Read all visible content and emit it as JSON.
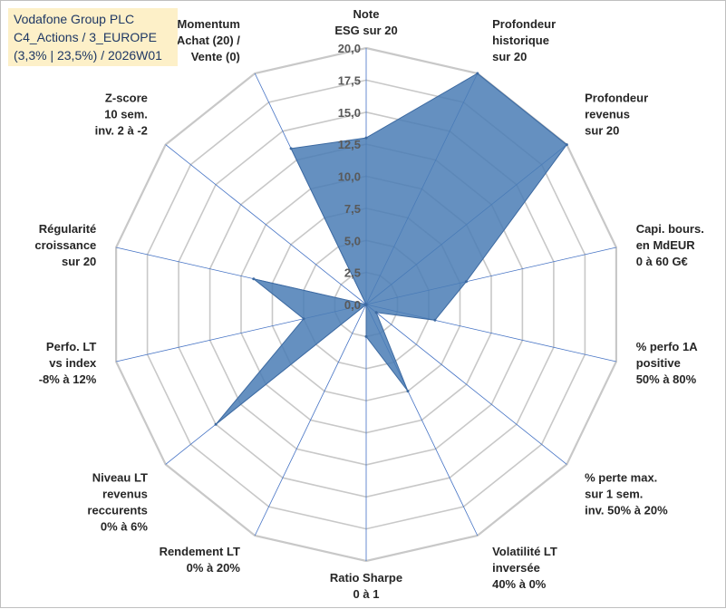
{
  "header": {
    "line1": "Vodafone Group PLC",
    "line2": "C4_Actions / 3_EUROPE",
    "line3": "(3,3% | 23,5%) / 2026W01"
  },
  "colors": {
    "fill": "#4a7cb5",
    "stroke": "#3d6aa1",
    "grid": "#c8c8c8",
    "spoke": "#4472c4",
    "title_bg": "#fdf0c8"
  },
  "chart_data": {
    "type": "radar",
    "rmin": 0,
    "rmax": 20,
    "ticks": [
      "0,0",
      "2,5",
      "5,0",
      "7,5",
      "10,0",
      "12,5",
      "15,0",
      "17,5",
      "20,0"
    ],
    "axes": [
      {
        "lines": [
          "Note",
          "ESG sur 20"
        ],
        "value": 13
      },
      {
        "lines": [
          "Profondeur",
          "historique",
          "sur 20"
        ],
        "value": 20
      },
      {
        "lines": [
          "Profondeur",
          "revenus",
          "sur 20"
        ],
        "value": 20
      },
      {
        "lines": [
          "Capi. bours.",
          "en MdEUR",
          "0 à 60 G€"
        ],
        "value": 8
      },
      {
        "lines": [
          "% perfo 1A",
          "positive",
          "50% à 80%"
        ],
        "value": 5.5
      },
      {
        "lines": [
          "% perte max.",
          "sur 1 sem.",
          "inv. 50% à 20%"
        ],
        "value": 1
      },
      {
        "lines": [
          "Volatilité LT",
          "inversée",
          "40% à 0%"
        ],
        "value": 7.5
      },
      {
        "lines": [
          "Ratio Sharpe",
          "0 à 1"
        ],
        "value": 2.5
      },
      {
        "lines": [
          "Rendement LT",
          "0% à 20%"
        ],
        "value": 0
      },
      {
        "lines": [
          "Niveau LT",
          "revenus",
          "reccurents",
          "0% à 6%"
        ],
        "value": 15
      },
      {
        "lines": [
          "Perfo. LT",
          "vs index",
          "-8% à 12%"
        ],
        "value": 5
      },
      {
        "lines": [
          "Régularité",
          "croissance",
          "sur 20"
        ],
        "value": 9
      },
      {
        "lines": [
          "Z-score",
          "10 sem.",
          "inv. 2 à -2"
        ],
        "value": 0
      },
      {
        "lines": [
          "Momentum",
          "Achat (20) /",
          "Vente (0)"
        ],
        "value": 13.5
      }
    ]
  }
}
